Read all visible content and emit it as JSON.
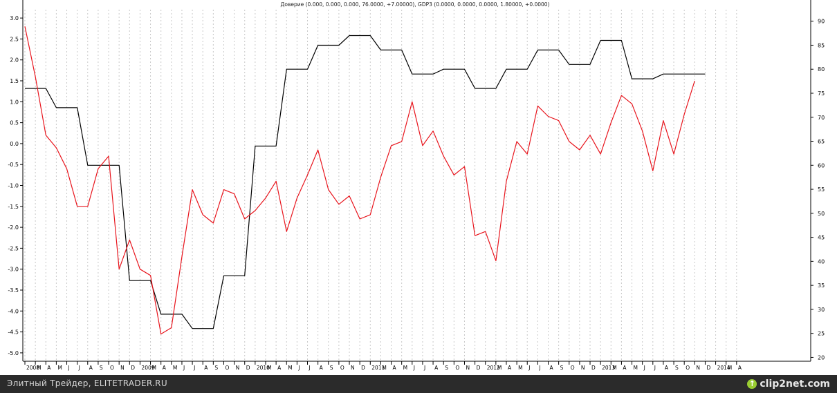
{
  "header": {
    "title": "Доверие (0.000, 0.000, 0.000, 76.0000, +7.00000), GDP3 (0.0000, 0.0000, 0.0000, 1.80000, +0.0000)"
  },
  "footer": {
    "text": "Элитный Трейдер, ELITETRADER.RU",
    "watermark": "clip2net.com",
    "watermark_icon": "arrow-icon"
  },
  "colors": {
    "confidence": "#000000",
    "gdp": "#e8141c",
    "grid": "#c8c8c8",
    "background": "#ffffff",
    "footer": "#2b2b2b"
  },
  "chart_data": {
    "type": "line",
    "title": "Доверие (0.000, 0.000, 0.000, 76.0000, +7.00000), GDP3 (0.0000, 0.0000, 0.0000, 1.80000, +0.0000)",
    "grid": true,
    "legend": "none",
    "x_labels": [
      "2008",
      "M",
      "A",
      "M",
      "J",
      "J",
      "A",
      "S",
      "O",
      "N",
      "D",
      "2009",
      "M",
      "A",
      "M",
      "J",
      "J",
      "A",
      "S",
      "O",
      "N",
      "D",
      "2010",
      "M",
      "A",
      "M",
      "J",
      "J",
      "A",
      "S",
      "O",
      "N",
      "D",
      "2011",
      "M",
      "A",
      "M",
      "J",
      "J",
      "A",
      "S",
      "O",
      "N",
      "D",
      "2012",
      "M",
      "A",
      "M",
      "J",
      "J",
      "A",
      "S",
      "O",
      "N",
      "D",
      "2013",
      "M",
      "A",
      "M",
      "J",
      "J",
      "A",
      "S",
      "O",
      "N",
      "D",
      "2014",
      "M",
      "A"
    ],
    "y_left": {
      "range": [
        -5.2,
        3.2
      ],
      "ticks": [
        3.0,
        2.5,
        2.0,
        1.5,
        1.0,
        0.5,
        0.0,
        -0.5,
        -1.0,
        -1.5,
        -2.0,
        -2.5,
        -3.0,
        -3.5,
        -4.0,
        -4.5,
        -5.0
      ],
      "tick_labels": [
        "3.0",
        "2.5",
        "2.0",
        "1.5",
        "1.0",
        "0.5",
        "0.0",
        "-0.5",
        "-1.0",
        "-1.5",
        "-2.0",
        "-2.5",
        "-3.0",
        "-3.5",
        "-4.0",
        "-4.5",
        "-5.0"
      ]
    },
    "y_right": {
      "range": [
        19.2,
        92.4
      ],
      "ticks": [
        90,
        85,
        80,
        75,
        70,
        65,
        60,
        55,
        50,
        45,
        40,
        35,
        30,
        25,
        20
      ],
      "tick_labels": [
        "90",
        "85",
        "80",
        "75",
        "70",
        "65",
        "60",
        "55",
        "50",
        "45",
        "40",
        "35",
        "30",
        "25",
        "20"
      ]
    },
    "series": [
      {
        "axis": "right",
        "values": [
          76,
          76,
          76,
          72,
          72,
          72,
          60,
          60,
          60,
          60,
          36,
          36,
          36,
          29,
          29,
          29,
          26,
          26,
          26,
          37,
          37,
          37,
          64,
          64,
          64,
          80,
          80,
          80,
          85,
          85,
          85,
          87,
          87,
          87,
          84,
          84,
          84,
          79,
          79,
          79,
          80,
          80,
          80,
          76,
          76,
          76,
          80,
          80,
          80,
          84,
          84,
          84,
          81,
          81,
          81,
          86,
          86,
          86,
          78,
          78,
          78,
          79,
          79,
          79,
          79,
          79
        ]
      },
      {
        "axis": "left",
        "values": [
          2.8,
          1.6,
          0.2,
          -0.1,
          -0.6,
          -1.5,
          -1.5,
          -0.6,
          -0.3,
          -3.0,
          -2.3,
          -3.0,
          -3.15,
          -4.55,
          -4.4,
          -2.7,
          -1.1,
          -1.7,
          -1.9,
          -1.1,
          -1.2,
          -1.8,
          -1.6,
          -1.3,
          -0.9,
          -2.1,
          -1.3,
          -0.75,
          -0.15,
          -1.1,
          -1.45,
          -1.25,
          -1.8,
          -1.7,
          -0.8,
          -0.05,
          0.05,
          1.0,
          -0.05,
          0.3,
          -0.3,
          -0.75,
          -0.55,
          -2.2,
          -2.1,
          -2.8,
          -0.9,
          0.05,
          -0.25,
          0.9,
          0.65,
          0.55,
          0.05,
          -0.15,
          0.2,
          -0.25,
          0.5,
          1.15,
          0.95,
          0.3,
          -0.65,
          0.55,
          -0.25,
          0.7,
          1.5
        ]
      }
    ]
  }
}
